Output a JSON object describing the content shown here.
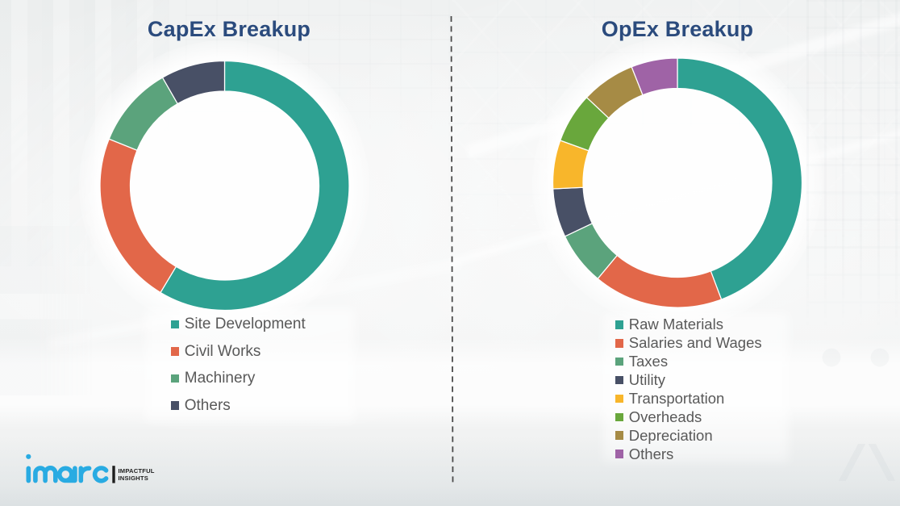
{
  "page": {
    "background_base": "#f1f2f3",
    "divider": {
      "color": "#4a4a4a",
      "style": "dashed"
    }
  },
  "chart_data": [
    {
      "type": "pie",
      "subtype": "donut",
      "title": "CapEx Breakup",
      "legend_position": "bottom",
      "segments": [
        {
          "label": "Site Development",
          "value": 58.6,
          "color": "#2EA192"
        },
        {
          "label": "Civil Works",
          "value": 22.5,
          "color": "#E26749"
        },
        {
          "label": "Machinery",
          "value": 10.6,
          "color": "#5BA37C"
        },
        {
          "label": "Others",
          "value": 8.3,
          "color": "#485066"
        }
      ]
    },
    {
      "type": "pie",
      "subtype": "donut",
      "title": "OpEx Breakup",
      "legend_position": "bottom",
      "segments": [
        {
          "label": "Raw Materials",
          "value": 44.3,
          "color": "#2EA192"
        },
        {
          "label": "Salaries and Wages",
          "value": 16.8,
          "color": "#E26749"
        },
        {
          "label": "Taxes",
          "value": 6.9,
          "color": "#5BA37C"
        },
        {
          "label": "Utility",
          "value": 6.3,
          "color": "#485066"
        },
        {
          "label": "Transportation",
          "value": 6.3,
          "color": "#F8B62B"
        },
        {
          "label": "Overheads",
          "value": 6.5,
          "color": "#69A73C"
        },
        {
          "label": "Depreciation",
          "value": 7.0,
          "color": "#A68B45"
        },
        {
          "label": "Others",
          "value": 6.0,
          "color": "#9F63A6"
        }
      ]
    }
  ],
  "style": {
    "title_color": "#2B4B7D",
    "legend_text_color": "#595959",
    "separator_color": "#ffffff"
  },
  "logo": {
    "wordmark": "imarc",
    "tagline_line1": "IMPACTFUL",
    "tagline_line2": "INSIGHTS",
    "wordmark_color": "#29ABE2",
    "tagline_color": "#1e1e1e"
  }
}
